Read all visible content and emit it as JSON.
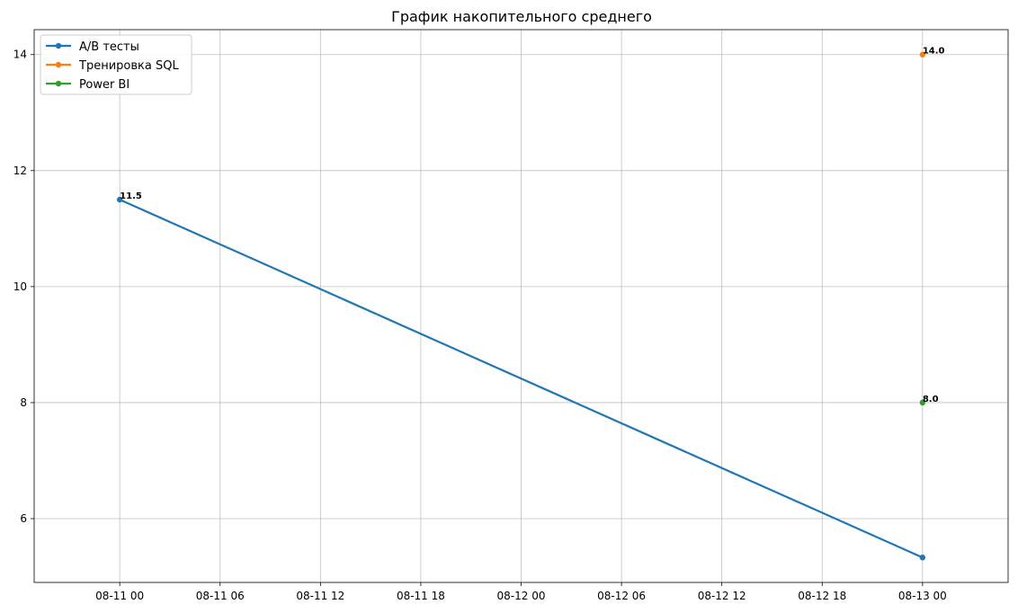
{
  "chart_data": {
    "type": "line",
    "title": "График накопительного среднего",
    "xlabel": "",
    "ylabel": "",
    "x_type": "datetime",
    "xlim": [
      "2023-08-10T18:53",
      "2023-08-13T05:07"
    ],
    "ylim": [
      4.9,
      14.43
    ],
    "xticks": [
      {
        "value": "2023-08-11T00:00",
        "label": "08-11 00"
      },
      {
        "value": "2023-08-11T06:00",
        "label": "08-11 06"
      },
      {
        "value": "2023-08-11T12:00",
        "label": "08-11 12"
      },
      {
        "value": "2023-08-11T18:00",
        "label": "08-11 18"
      },
      {
        "value": "2023-08-12T00:00",
        "label": "08-12 00"
      },
      {
        "value": "2023-08-12T06:00",
        "label": "08-12 06"
      },
      {
        "value": "2023-08-12T12:00",
        "label": "08-12 12"
      },
      {
        "value": "2023-08-12T18:00",
        "label": "08-12 18"
      },
      {
        "value": "2023-08-13T00:00",
        "label": "08-13 00"
      }
    ],
    "yticks": [
      {
        "value": 6,
        "label": "6"
      },
      {
        "value": 8,
        "label": "8"
      },
      {
        "value": 10,
        "label": "10"
      },
      {
        "value": 12,
        "label": "12"
      },
      {
        "value": 14,
        "label": "14"
      }
    ],
    "grid": true,
    "legend_position": "top-left",
    "series": [
      {
        "name": "A/B тесты",
        "color": "#1f77b4",
        "points": [
          {
            "x": "2023-08-11T00:00",
            "y": 11.5,
            "label": "11.5"
          },
          {
            "x": "2023-08-13T00:00",
            "y": 5.33,
            "label": ""
          }
        ]
      },
      {
        "name": "Тренировка SQL",
        "color": "#ff7f0e",
        "points": [
          {
            "x": "2023-08-13T00:00",
            "y": 14.0,
            "label": "14.0"
          }
        ]
      },
      {
        "name": "Power BI",
        "color": "#2ca02c",
        "points": [
          {
            "x": "2023-08-13T00:00",
            "y": 8.0,
            "label": "8.0"
          }
        ]
      }
    ]
  }
}
